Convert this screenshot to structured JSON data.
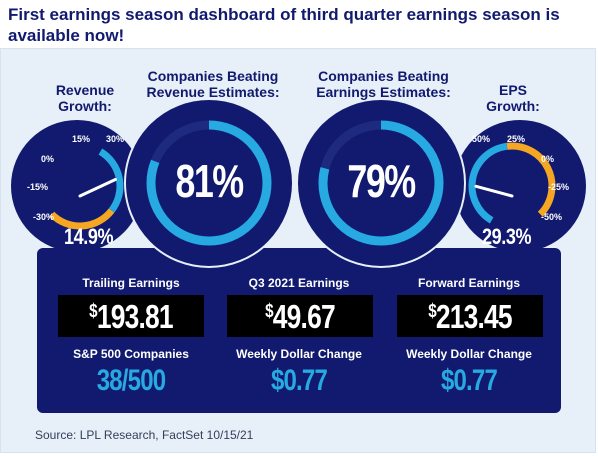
{
  "headline": "First earnings season dashboard of third quarter earnings season is available now!",
  "colors": {
    "navy": "#111a6e",
    "accent_blue": "#27a9e1",
    "orange": "#f5a623"
  },
  "revenue_gauge": {
    "title": "Revenue\nGrowth:",
    "ticks": [
      "15%",
      "30%",
      "0%",
      "-15%",
      "-30%"
    ],
    "value_text": "14.9%",
    "value": 14.9
  },
  "revenue_beat": {
    "title": "Companies Beating\nRevenue Estimates:",
    "value_text": "81%",
    "value": 81
  },
  "earnings_beat": {
    "title": "Companies Beating\nEarnings Estimates:",
    "value_text": "79%",
    "value": 79
  },
  "eps_gauge": {
    "title": "EPS\nGrowth:",
    "ticks": [
      "50%",
      "25%",
      "0%",
      "-25%",
      "-50%"
    ],
    "value_text": "29.3%",
    "value": 29.3
  },
  "stats": [
    {
      "caption": "Trailing Earnings",
      "amount": "193.81",
      "sub_caption": "S&P 500 Companies",
      "sub_value": "38/500"
    },
    {
      "caption": "Q3 2021 Earnings",
      "amount": "49.67",
      "sub_caption": "Weekly Dollar Change",
      "sub_value": "$0.77"
    },
    {
      "caption": "Forward Earnings",
      "amount": "213.45",
      "sub_caption": "Weekly Dollar Change",
      "sub_value": "$0.77"
    }
  ],
  "currency_symbol": "$",
  "source": "Source: LPL Research, FactSet 10/15/21"
}
